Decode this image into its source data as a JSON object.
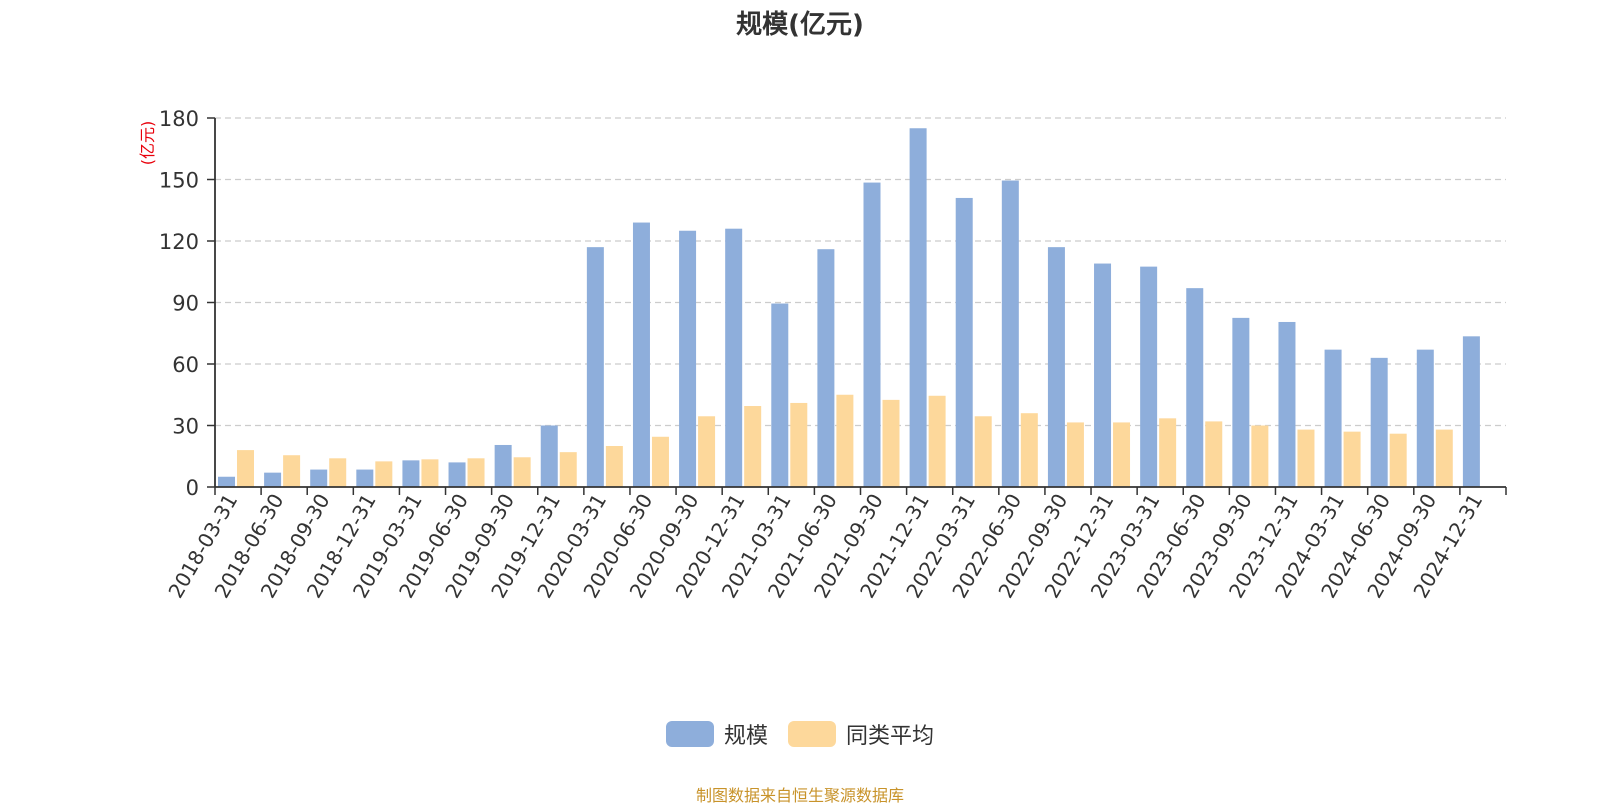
{
  "chart_data": {
    "type": "bar",
    "title": "规模(亿元)",
    "ylabel": "(亿元)",
    "ylim": [
      0,
      180
    ],
    "yticks": [
      0,
      30,
      60,
      90,
      120,
      150,
      180
    ],
    "grid": true,
    "legend_position": "bottom",
    "categories": [
      "2018-03-31",
      "2018-06-30",
      "2018-09-30",
      "2018-12-31",
      "2019-03-31",
      "2019-06-30",
      "2019-09-30",
      "2019-12-31",
      "2020-03-31",
      "2020-06-30",
      "2020-09-30",
      "2020-12-31",
      "2021-03-31",
      "2021-06-30",
      "2021-09-30",
      "2021-12-31",
      "2022-03-31",
      "2022-06-30",
      "2022-09-30",
      "2022-12-31",
      "2023-03-31",
      "2023-06-30",
      "2023-09-30",
      "2023-12-31",
      "2024-03-31",
      "2024-06-30",
      "2024-09-30",
      "2024-12-31"
    ],
    "series": [
      {
        "name": "规模",
        "color": "#8eaedb",
        "values": [
          5,
          7,
          8.5,
          8.5,
          13,
          12,
          20.5,
          30,
          117,
          129,
          125,
          126,
          89.5,
          116,
          148.5,
          175,
          141,
          149.5,
          117,
          109,
          107.5,
          97,
          82.5,
          80.5,
          67,
          63,
          67,
          73.5
        ]
      },
      {
        "name": "同类平均",
        "color": "#fdd89b",
        "values": [
          18,
          15.5,
          14,
          12.5,
          13.5,
          14,
          14.5,
          17,
          20,
          24.5,
          34.5,
          39.5,
          41,
          45,
          42.5,
          44.5,
          34.5,
          36,
          31.5,
          31.5,
          33.5,
          32,
          30,
          28,
          27,
          26,
          28,
          null
        ]
      }
    ]
  },
  "source_text": "制图数据来自恒生聚源数据库",
  "colors": {
    "axis": "#333333",
    "grid": "#cccccc",
    "ylabel": "#e8000b",
    "source": "#c8932a"
  }
}
